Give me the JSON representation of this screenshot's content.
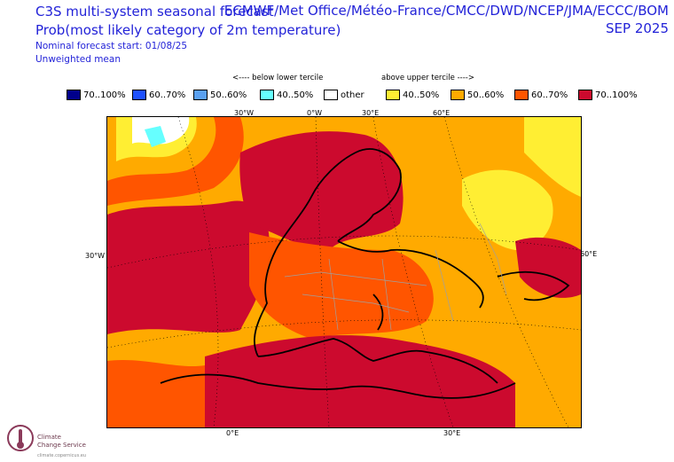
{
  "header": {
    "title_left": "C3S multi-system seasonal forecast",
    "subtitle_left": "Prob(most likely category of 2m temperature)",
    "nominal_start": "Nominal forecast start: 01/08/25",
    "weighting": "Unweighted mean",
    "title_right": "ECMWF/Met Office/Météo-France/CMCC/DWD/NCEP/JMA/ECCC/BOM",
    "month_right": "SEP 2025"
  },
  "legend": {
    "lower_label": "<---- below lower tercile",
    "upper_label": "above upper tercile ---->",
    "items": [
      {
        "label": "70..100%",
        "color": "#00008b"
      },
      {
        "label": "60..70%",
        "color": "#1e50ff"
      },
      {
        "label": "50..60%",
        "color": "#5aa0f0"
      },
      {
        "label": "40..50%",
        "color": "#66ffff"
      },
      {
        "label": "other",
        "color": "#ffffff"
      },
      {
        "label": "40..50%",
        "color": "#ffee33"
      },
      {
        "label": "50..60%",
        "color": "#ffaa00"
      },
      {
        "label": "60..70%",
        "color": "#ff5500"
      },
      {
        "label": "70..100%",
        "color": "#cc0a2e"
      }
    ]
  },
  "map": {
    "top_labels": [
      "30°W",
      "0°W",
      "30°E",
      "60°E"
    ],
    "bottom_labels": [
      "0°E",
      "30°E"
    ],
    "left_label": "30°W",
    "right_label": "60°E"
  },
  "logo": {
    "line1": "Climate",
    "line2": "Change Service",
    "url": "climate.copernicus.eu",
    "colors": {
      "mark": "#8b3a5a"
    }
  }
}
